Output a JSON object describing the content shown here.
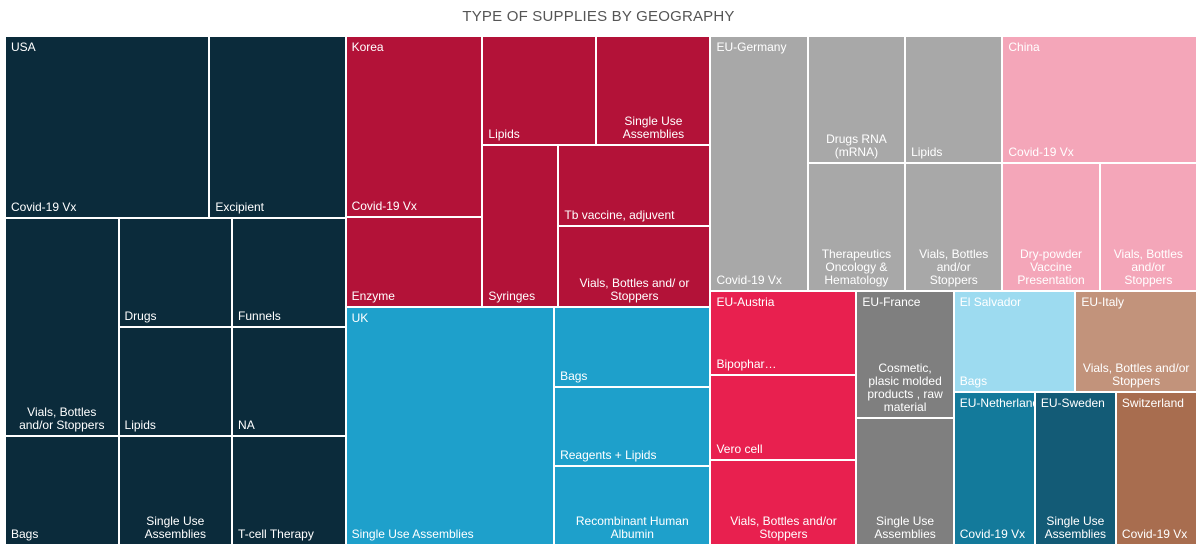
{
  "chart_data": {
    "type": "treemap",
    "title": "TYPE OF SUPPLIES BY GEOGRAPHY",
    "groups": [
      {
        "name": "USA",
        "color": "#0b2b3b",
        "items": [
          {
            "name": "Covid-19 Vx",
            "value": 3
          },
          {
            "name": "Excipient",
            "value": 2
          },
          {
            "name": "Vials, Bottles and/or Stoppers",
            "value": 2
          },
          {
            "name": "Bags",
            "value": 1
          },
          {
            "name": "Drugs",
            "value": 1
          },
          {
            "name": "Funnels",
            "value": 1
          },
          {
            "name": "Lipids",
            "value": 1
          },
          {
            "name": "Single Use Assemblies",
            "value": 1
          },
          {
            "name": "NA",
            "value": 1
          },
          {
            "name": "T-cell Therapy",
            "value": 1
          }
        ]
      },
      {
        "name": "Korea",
        "color": "#b31238",
        "items": [
          {
            "name": "Covid-19 Vx",
            "value": 2
          },
          {
            "name": "Enzyme",
            "value": 1
          },
          {
            "name": "Lipids",
            "value": 1
          },
          {
            "name": "Single Use Assemblies",
            "value": 1
          },
          {
            "name": "Syringes",
            "value": 1
          },
          {
            "name": "Tb vaccine, adjuvent",
            "value": 1
          },
          {
            "name": "Vials, Bottles and/ or Stoppers",
            "value": 1
          }
        ]
      },
      {
        "name": "UK",
        "color": "#1ea0cb",
        "items": [
          {
            "name": "Single Use Assemblies",
            "value": 4
          },
          {
            "name": "Bags",
            "value": 1
          },
          {
            "name": "Reagents + Lipids",
            "value": 1
          },
          {
            "name": "Recombinant Human Albumin",
            "value": 1
          }
        ]
      },
      {
        "name": "EU-Germany",
        "color": "#a8a8a8",
        "items": [
          {
            "name": "Covid-19 Vx",
            "value": 2
          },
          {
            "name": "Drugs RNA (mRNA)",
            "value": 1
          },
          {
            "name": "Lipids",
            "value": 1
          },
          {
            "name": "Therapeutics Oncology & Hematology",
            "value": 1
          },
          {
            "name": "Vials, Bottles and/or Stoppers",
            "value": 1
          }
        ]
      },
      {
        "name": "China",
        "color": "#f4a6b9",
        "items": [
          {
            "name": "Covid-19 Vx",
            "value": 2
          },
          {
            "name": "Dry-powder Vaccine Presentation",
            "value": 1
          },
          {
            "name": "Vials, Bottles and/or Stoppers",
            "value": 1
          }
        ]
      },
      {
        "name": "EU-Austria",
        "color": "#e8204f",
        "items": [
          {
            "name": "Bipophar…",
            "value": 1
          },
          {
            "name": "Vero cell",
            "value": 1
          },
          {
            "name": "Vials, Bottles and/or Stoppers",
            "value": 1
          }
        ]
      },
      {
        "name": "EU-France",
        "color": "#7f7f7f",
        "items": [
          {
            "name": "Cosmetic, plasic molded products , raw material",
            "value": 1
          },
          {
            "name": "Single Use Assemblies",
            "value": 1
          }
        ]
      },
      {
        "name": "El Salvador",
        "color": "#9ddbf0",
        "items": [
          {
            "name": "Bags",
            "value": 1
          }
        ]
      },
      {
        "name": "EU-Italy",
        "color": "#c2937b",
        "items": [
          {
            "name": "Vials, Bottles and/or Stoppers",
            "value": 1
          }
        ]
      },
      {
        "name": "EU-Netherland",
        "color": "#137a9b",
        "items": [
          {
            "name": "Covid-19 Vx",
            "value": 1
          }
        ]
      },
      {
        "name": "EU-Sweden",
        "color": "#135b76",
        "items": [
          {
            "name": "Single Use Assemblies",
            "value": 1
          }
        ]
      },
      {
        "name": "Switzerland",
        "color": "#a86d4f",
        "items": [
          {
            "name": "Covid-19 Vx",
            "value": 1
          }
        ]
      }
    ]
  }
}
